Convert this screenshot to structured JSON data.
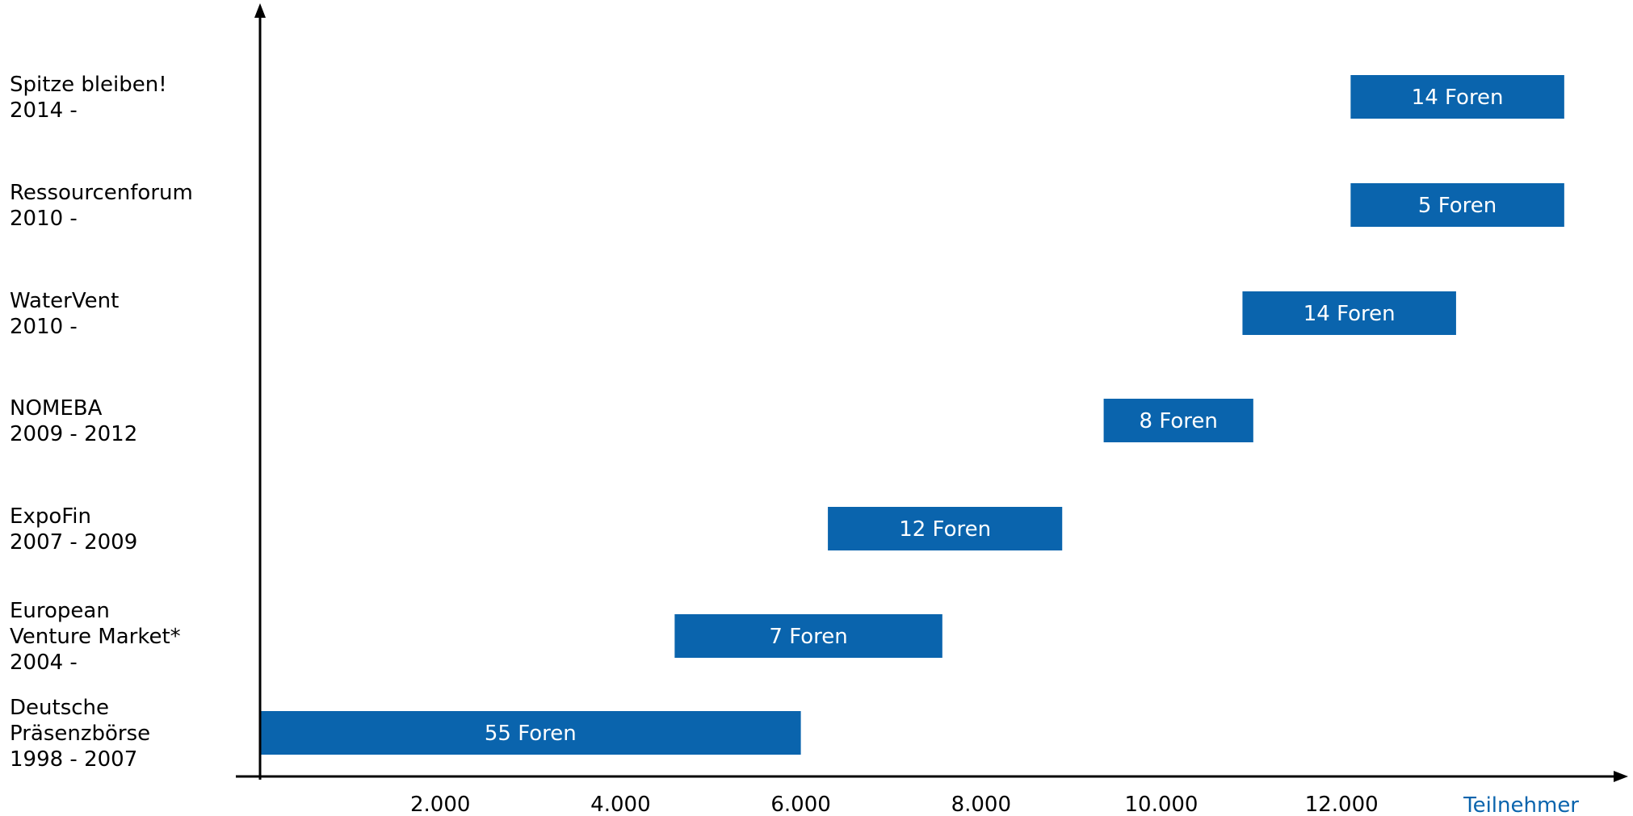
{
  "chart_data": {
    "type": "bar",
    "orientation": "horizontal-range",
    "categories": [
      [
        "Deutsche",
        "Präsenzbörse",
        "1998 - 2007"
      ],
      [
        "European",
        "Venture Market*",
        "2004 -"
      ],
      [
        "ExpoFin",
        "2007 - 2009"
      ],
      [
        "NOMEBA",
        "2009 - 2012"
      ],
      [
        "WaterVent",
        "2010 -"
      ],
      [
        "Ressourcenforum",
        "2010 -"
      ],
      [
        "Spitze bleiben!",
        "2014 -"
      ]
    ],
    "bars": [
      {
        "start": 0,
        "end": 6000,
        "label": "55 Foren"
      },
      {
        "start": 4600,
        "end": 7570,
        "label": "7 Foren"
      },
      {
        "start": 6300,
        "end": 8900,
        "label": "12 Foren"
      },
      {
        "start": 9360,
        "end": 11020,
        "label": "8 Foren"
      },
      {
        "start": 10900,
        "end": 13270,
        "label": "14 Foren"
      },
      {
        "start": 12100,
        "end": 14470,
        "label": "5 Foren"
      },
      {
        "start": 12100,
        "end": 14470,
        "label": "14 Foren"
      }
    ],
    "x_ticks": [
      {
        "value": 2000,
        "label": "2.000"
      },
      {
        "value": 4000,
        "label": "4.000"
      },
      {
        "value": 6000,
        "label": "6.000"
      },
      {
        "value": 8000,
        "label": "8.000"
      },
      {
        "value": 10000,
        "label": "10.000"
      },
      {
        "value": 12000,
        "label": "12.000"
      }
    ],
    "xlabel": "Teilnehmer",
    "xlim": [
      0,
      15000
    ],
    "grid": false,
    "colors": {
      "bar": "#0A64AD",
      "bar_text": "#FFFFFF",
      "axis": "#000000",
      "xlabel": "#0A64AD"
    }
  }
}
